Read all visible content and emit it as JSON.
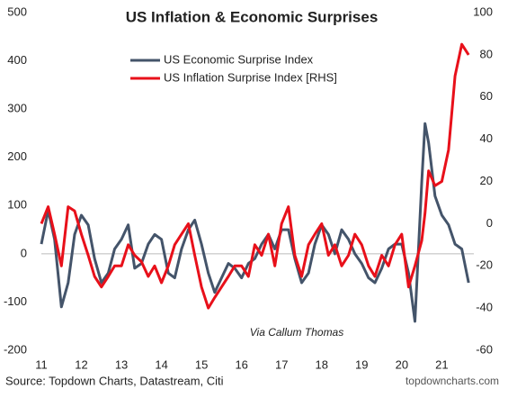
{
  "chart_data": {
    "type": "line",
    "title": "US Inflation & Economic Surprises",
    "annotation": "Via Callum Thomas",
    "source": "Source: Topdown Charts, Datastream, Citi",
    "watermark": "topdowncharts.com",
    "x": [
      11.0,
      11.17,
      11.33,
      11.5,
      11.67,
      11.83,
      12.0,
      12.17,
      12.33,
      12.5,
      12.67,
      12.83,
      13.0,
      13.17,
      13.33,
      13.5,
      13.67,
      13.83,
      14.0,
      14.17,
      14.33,
      14.5,
      14.67,
      14.83,
      15.0,
      15.17,
      15.33,
      15.5,
      15.67,
      15.83,
      16.0,
      16.17,
      16.33,
      16.5,
      16.67,
      16.83,
      17.0,
      17.17,
      17.33,
      17.5,
      17.67,
      17.83,
      18.0,
      18.17,
      18.33,
      18.5,
      18.67,
      18.83,
      19.0,
      19.17,
      19.33,
      19.5,
      19.67,
      19.83,
      20.0,
      20.17,
      20.33,
      20.5,
      20.58,
      20.67,
      20.83,
      21.0,
      21.17,
      21.33,
      21.5,
      21.67
    ],
    "series": [
      {
        "name": "US Economic Surprise Index",
        "color": "#44546a",
        "values": [
          20,
          90,
          30,
          -110,
          -60,
          40,
          80,
          60,
          -10,
          -60,
          -40,
          10,
          30,
          60,
          -30,
          -20,
          20,
          40,
          30,
          -40,
          -50,
          10,
          50,
          70,
          20,
          -40,
          -80,
          -50,
          -20,
          -30,
          -50,
          -20,
          -10,
          20,
          40,
          10,
          50,
          50,
          -10,
          -60,
          -40,
          20,
          60,
          40,
          0,
          50,
          30,
          0,
          -20,
          -50,
          -60,
          -30,
          10,
          20,
          20,
          -40,
          -140,
          150,
          270,
          230,
          120,
          80,
          60,
          20,
          10,
          -60
        ]
      },
      {
        "name": "US Inflation Surprise Index [RHS]",
        "color": "#e8101a",
        "axis": "y2",
        "values": [
          0,
          8,
          -5,
          -20,
          8,
          6,
          -5,
          -15,
          -25,
          -30,
          -25,
          -20,
          -20,
          -10,
          -15,
          -18,
          -25,
          -20,
          -28,
          -20,
          -10,
          -5,
          0,
          -15,
          -30,
          -40,
          -35,
          -30,
          -25,
          -20,
          -20,
          -25,
          -10,
          -15,
          -5,
          -20,
          0,
          8,
          -15,
          -25,
          -10,
          -5,
          0,
          -15,
          -10,
          -20,
          -15,
          -5,
          -10,
          -20,
          -25,
          -15,
          -20,
          -10,
          -5,
          -30,
          -20,
          -8,
          5,
          25,
          18,
          20,
          35,
          70,
          85,
          80
        ]
      }
    ],
    "xlim": [
      11,
      21.8
    ],
    "xticks": [
      11,
      12,
      13,
      14,
      15,
      16,
      17,
      18,
      19,
      20,
      21
    ],
    "ylim": [
      -200,
      500
    ],
    "yticks": [
      -200,
      -100,
      0,
      100,
      200,
      300,
      400,
      500
    ],
    "y2lim": [
      -60,
      100
    ],
    "y2ticks": [
      -60,
      -40,
      -20,
      0,
      20,
      40,
      60,
      80,
      100
    ],
    "zero_line": true
  }
}
